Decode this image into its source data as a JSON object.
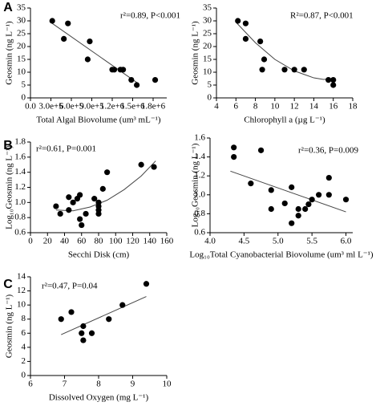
{
  "chart_data": [
    {
      "type": "scatter",
      "panel_label": "A",
      "annotation": "r²=0.89, P<0.001",
      "x_label": "Total Algal Biovolume (um³ mL⁻¹)",
      "y_label": "Geosmin (ng L⁻¹)",
      "color": "#000000",
      "x": [
        320000,
        490000,
        550000,
        870000,
        840000,
        1200000,
        1230000,
        1320000,
        1360000,
        1480000,
        1560000,
        1830000
      ],
      "y": [
        30,
        23,
        29,
        22,
        15,
        11,
        11,
        11,
        11,
        7,
        5,
        7
      ],
      "trendline": {
        "x": [
          320000,
          1560000
        ],
        "y": [
          29,
          6
        ]
      },
      "xlim": [
        0,
        2000000
      ],
      "xticks": [
        {
          "value": 0,
          "label": "0.0"
        },
        {
          "value": 300000,
          "label": "3.0e+5"
        },
        {
          "value": 600000,
          "label": "6.0e+5"
        },
        {
          "value": 900000,
          "label": "9.0e+5"
        },
        {
          "value": 1200000,
          "label": "1.2e+6"
        },
        {
          "value": 1500000,
          "label": "1.5e+6"
        },
        {
          "value": 1800000,
          "label": "1.8e+6"
        }
      ],
      "ylim": [
        0,
        35
      ],
      "yticks": [
        0,
        5,
        10,
        15,
        20,
        25,
        30,
        35
      ]
    },
    {
      "type": "scatter",
      "annotation": "R²=0.87, P<0.001",
      "x_label": "Chlorophyll a (µg L⁻¹)",
      "y_label": "Geosmin (ng L⁻¹)",
      "color": "#000000",
      "x": [
        6.2,
        7,
        7,
        8.5,
        8.7,
        8.9,
        11,
        12,
        13,
        15.5,
        16,
        16
      ],
      "y": [
        30,
        29,
        23,
        22,
        11,
        15,
        11,
        11,
        11,
        7,
        7,
        5
      ],
      "trendline": {
        "x": [
          6,
          8,
          10,
          12,
          14,
          15,
          16
        ],
        "y": [
          29.5,
          21.5,
          15,
          10.5,
          7.8,
          7.2,
          7.5
        ]
      },
      "xlim": [
        4,
        18
      ],
      "xticks": [
        4,
        6,
        8,
        10,
        12,
        14,
        16,
        18
      ],
      "ylim": [
        0,
        35
      ],
      "yticks": [
        0,
        5,
        10,
        15,
        20,
        25,
        30,
        35
      ]
    },
    {
      "type": "scatter",
      "panel_label": "B",
      "annotation": "r²=0.61, P=0.001",
      "x_label": "Secchi Disk (cm)",
      "y_label": "Log₁₀Geosmin (ng L⁻¹)",
      "color": "#000000",
      "x": [
        30,
        35,
        45,
        45,
        50,
        55,
        58,
        58,
        60,
        65,
        75,
        80,
        80,
        80,
        80,
        85,
        90,
        130,
        145
      ],
      "y": [
        0.95,
        0.85,
        0.9,
        1.07,
        1.0,
        1.05,
        1.1,
        0.78,
        0.7,
        0.85,
        1.05,
        1.0,
        0.95,
        0.9,
        0.85,
        1.18,
        1.4,
        1.5,
        1.47
      ],
      "trendline": {
        "x": [
          30,
          50,
          70,
          90,
          110,
          130,
          147
        ],
        "y": [
          0.9,
          0.89,
          0.94,
          1.03,
          1.17,
          1.35,
          1.55
        ]
      },
      "xlim": [
        0,
        160
      ],
      "xticks": [
        0,
        20,
        40,
        60,
        80,
        100,
        120,
        140,
        160
      ],
      "ylim": [
        0.6,
        1.8
      ],
      "yticks": [
        0.6,
        0.8,
        {
          "value": 1.0,
          "label": "1.0"
        },
        1.2,
        1.4,
        1.6,
        1.8
      ]
    },
    {
      "type": "scatter",
      "annotation": "r²=0.36, P=0.009",
      "x_label": "Log₁₀Total Cyanobacterial Biovolume (um³ ml L⁻¹)",
      "y_label": "Log₁₀Geosmin (ng L⁻¹)",
      "color": "#000000",
      "x": [
        4.35,
        4.35,
        4.6,
        4.75,
        4.9,
        4.9,
        5.1,
        5.2,
        5.2,
        5.3,
        5.3,
        5.4,
        5.45,
        5.5,
        5.6,
        5.75,
        5.75,
        6.0
      ],
      "y": [
        1.5,
        1.4,
        1.12,
        1.47,
        1.05,
        0.85,
        0.91,
        0.7,
        1.08,
        0.78,
        0.85,
        0.85,
        0.9,
        0.95,
        1.0,
        1.18,
        1.0,
        0.95
      ],
      "trendline": {
        "x": [
          4.3,
          6.0
        ],
        "y": [
          1.25,
          0.82
        ]
      },
      "xlim": [
        4.0,
        6.1
      ],
      "xticks": [
        {
          "value": 4.0,
          "label": "4.0"
        },
        4.5,
        {
          "value": 5.0,
          "label": "5.0"
        },
        5.5,
        {
          "value": 6.0,
          "label": "6.0"
        }
      ],
      "ylim": [
        0.6,
        1.6
      ],
      "yticks": [
        0.6,
        0.8,
        {
          "value": 1.0,
          "label": "1.0"
        },
        1.2,
        1.4,
        1.6
      ]
    },
    {
      "type": "scatter",
      "panel_label": "C",
      "annotation": "r²=0.47, P=0.04",
      "x_label": "Dissolved Oxygen (mg L⁻¹)",
      "y_label": "Geosmin (ng L⁻¹)",
      "color": "#000000",
      "x": [
        6.9,
        7.2,
        7.55,
        7.5,
        7.55,
        7.8,
        8.3,
        8.7,
        9.4
      ],
      "y": [
        8,
        9,
        7,
        6,
        5,
        6,
        8,
        10,
        13
      ],
      "trendline": {
        "x": [
          6.9,
          9.4
        ],
        "y": [
          5.8,
          11.2
        ]
      },
      "xlim": [
        6,
        10
      ],
      "xticks": [
        6,
        7,
        8,
        9,
        10
      ],
      "ylim": [
        0,
        14
      ],
      "yticks": [
        0,
        2,
        4,
        6,
        8,
        10,
        12,
        14
      ]
    }
  ]
}
